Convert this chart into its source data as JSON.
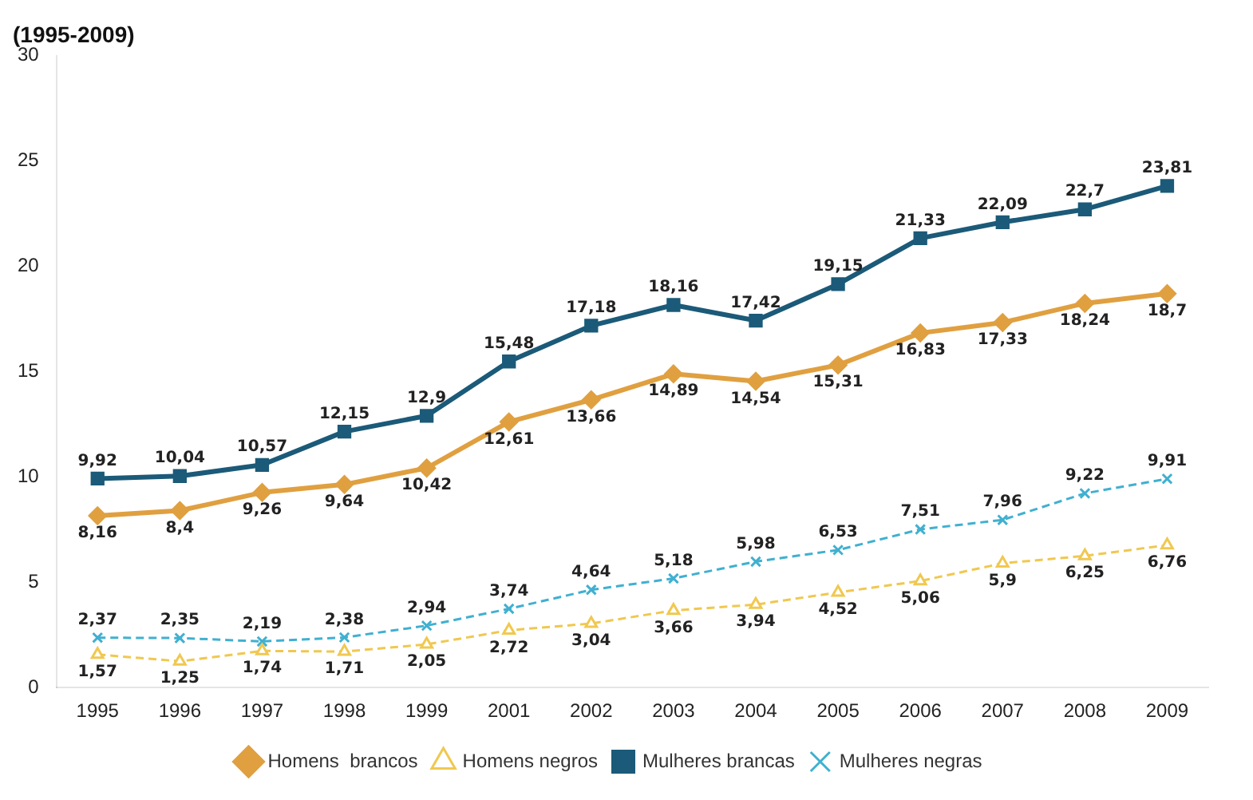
{
  "chart_data": {
    "type": "line",
    "title": "(1995-2009)",
    "categories": [
      "1995",
      "1996",
      "1997",
      "1998",
      "1999",
      "2001",
      "2002",
      "2003",
      "2004",
      "2005",
      "2006",
      "2007",
      "2008",
      "2009"
    ],
    "ylim": [
      0,
      30
    ],
    "yticks": [
      0,
      5,
      10,
      15,
      20,
      25,
      30
    ],
    "grid": false,
    "legend": "bottom",
    "series": [
      {
        "name": "Homens  brancos",
        "color": "#e0a040",
        "marker": "diamond",
        "line_style": "solid",
        "values": [
          8.16,
          8.4,
          9.26,
          9.64,
          10.42,
          12.61,
          13.66,
          14.89,
          14.54,
          15.31,
          16.83,
          17.33,
          18.24,
          18.7
        ],
        "value_labels": [
          "8,16",
          "8,4",
          "9,26",
          "9,64",
          "10,42",
          "12,61",
          "13,66",
          "14,89",
          "14,54",
          "15,31",
          "16,83",
          "17,33",
          "18,24",
          "18,7"
        ]
      },
      {
        "name": "Homens negros",
        "color": "#f0c850",
        "marker": "triangle",
        "line_style": "dashed",
        "values": [
          1.57,
          1.25,
          1.74,
          1.71,
          2.05,
          2.72,
          3.04,
          3.66,
          3.94,
          4.52,
          5.06,
          5.9,
          6.25,
          6.76
        ],
        "value_labels": [
          "1,57",
          "1,25",
          "1,74",
          "1,71",
          "2,05",
          "2,72",
          "3,04",
          "3,66",
          "3,94",
          "4,52",
          "5,06",
          "5,9",
          "6,25",
          "6,76"
        ]
      },
      {
        "name": "Mulheres brancas",
        "color": "#1b5a78",
        "marker": "square",
        "line_style": "solid",
        "values": [
          9.92,
          10.04,
          10.57,
          12.15,
          12.9,
          15.48,
          17.18,
          18.16,
          17.42,
          19.15,
          21.33,
          22.09,
          22.7,
          23.81
        ],
        "value_labels": [
          "9,92",
          "10,04",
          "10,57",
          "12,15",
          "12,9",
          "15,48",
          "17,18",
          "18,16",
          "17,42",
          "19,15",
          "21,33",
          "22,09",
          "22,7",
          "23,81"
        ]
      },
      {
        "name": "Mulheres negras",
        "color": "#40b0d0",
        "marker": "cross",
        "line_style": "dashed",
        "values": [
          2.37,
          2.35,
          2.19,
          2.38,
          2.94,
          3.74,
          4.64,
          5.18,
          5.98,
          6.53,
          7.51,
          7.96,
          9.22,
          9.91
        ],
        "value_labels": [
          "2,37",
          "2,35",
          "2,19",
          "2,38",
          "2,94",
          "3,74",
          "4,64",
          "5,18",
          "5,98",
          "6,53",
          "7,51",
          "7,96",
          "9,22",
          "9,91"
        ]
      }
    ]
  }
}
